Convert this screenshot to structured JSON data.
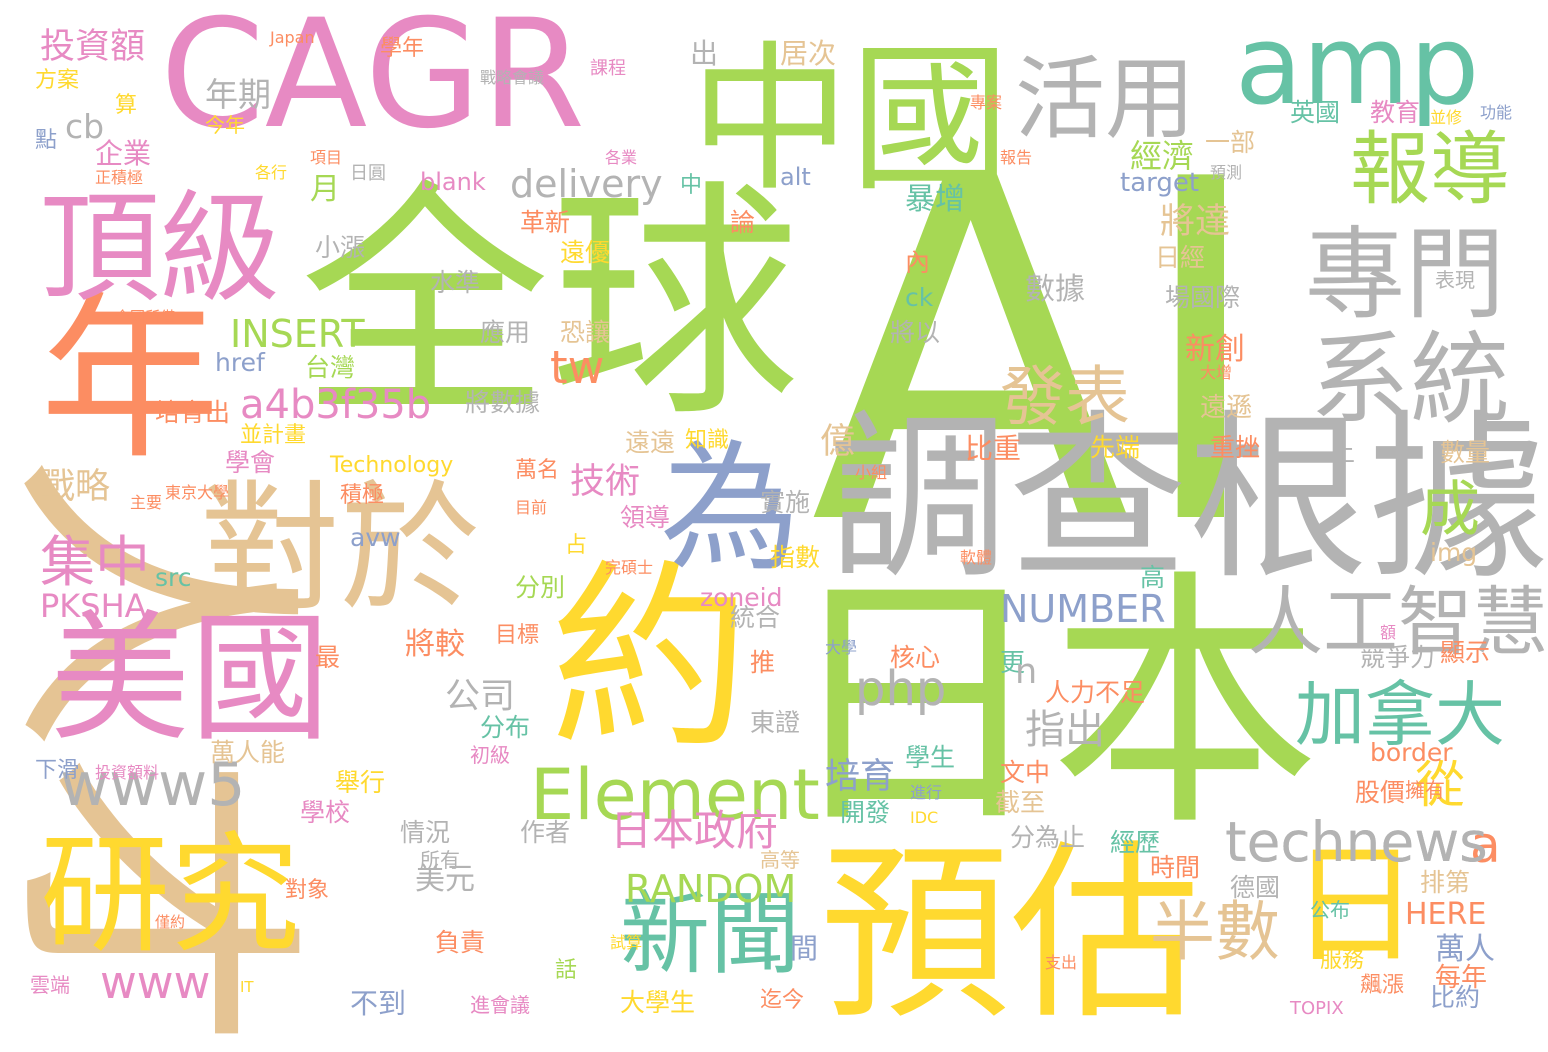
{
  "palette": {
    "green": "#a6d854",
    "pink": "#e78ac3",
    "orange": "#fc8d62",
    "tan": "#e5c494",
    "yellow": "#ffd92f",
    "gray": "#b3b3b3",
    "teal": "#66c2a5",
    "blue": "#8da0cb"
  },
  "words": [
    {
      "text": "AI",
      "color": "green"
    },
    {
      "text": "全球",
      "color": "green"
    },
    {
      "text": "日本",
      "color": "green"
    },
    {
      "text": "人才",
      "color": "tan"
    },
    {
      "text": "調查根據",
      "color": "gray"
    },
    {
      "text": "CAGR",
      "color": "pink"
    },
    {
      "text": "約",
      "color": "yellow"
    },
    {
      "text": "預估",
      "color": "yellow"
    },
    {
      "text": "年",
      "color": "orange"
    },
    {
      "text": "中國",
      "color": "green"
    },
    {
      "text": "對於",
      "color": "tan"
    },
    {
      "text": "研究",
      "color": "yellow"
    },
    {
      "text": "美國",
      "color": "pink"
    },
    {
      "text": "頂級",
      "color": "pink"
    },
    {
      "text": "amp",
      "color": "teal"
    },
    {
      "text": "為",
      "color": "blue"
    },
    {
      "text": "活用",
      "color": "gray"
    },
    {
      "text": "專門",
      "color": "gray"
    },
    {
      "text": "系統",
      "color": "gray"
    },
    {
      "text": "報導",
      "color": "green"
    },
    {
      "text": "日",
      "color": "yellow"
    },
    {
      "text": "人工智慧",
      "color": "gray"
    },
    {
      "text": "新聞",
      "color": "teal"
    },
    {
      "text": "加拿大",
      "color": "teal"
    },
    {
      "text": "Element",
      "color": "green"
    },
    {
      "text": "www5",
      "color": "gray"
    },
    {
      "text": "technews",
      "color": "gray"
    },
    {
      "text": "發表",
      "color": "tan"
    },
    {
      "text": "半數",
      "color": "tan"
    },
    {
      "text": "集中",
      "color": "pink"
    },
    {
      "text": "成",
      "color": "green"
    },
    {
      "text": "從",
      "color": "yellow"
    },
    {
      "text": "a",
      "color": "orange"
    },
    {
      "text": "a4b3f35b",
      "color": "pink"
    },
    {
      "text": "INSERT",
      "color": "green"
    },
    {
      "text": "delivery",
      "color": "gray"
    },
    {
      "text": "tw",
      "color": "orange"
    },
    {
      "text": "日本政府",
      "color": "pink"
    },
    {
      "text": "RANDOM",
      "color": "green"
    },
    {
      "text": "NUMBER",
      "color": "blue"
    },
    {
      "text": "www",
      "color": "pink"
    },
    {
      "text": "PKSHA",
      "color": "pink"
    },
    {
      "text": "php",
      "color": "gray"
    },
    {
      "text": "technews",
      "color": "gray"
    },
    {
      "text": "投資額",
      "color": "pink"
    },
    {
      "text": "年期",
      "color": "gray"
    },
    {
      "text": "cb",
      "color": "gray"
    },
    {
      "text": "企業",
      "color": "pink"
    },
    {
      "text": "算",
      "color": "yellow"
    },
    {
      "text": "方案",
      "color": "yellow"
    },
    {
      "text": "點",
      "color": "blue"
    },
    {
      "text": "今年",
      "color": "yellow"
    },
    {
      "text": "正積極",
      "color": "orange"
    },
    {
      "text": "月",
      "color": "green"
    },
    {
      "text": "blank",
      "color": "pink"
    },
    {
      "text": "各行",
      "color": "yellow"
    },
    {
      "text": "日圓",
      "color": "gray"
    },
    {
      "text": "項目",
      "color": "orange"
    },
    {
      "text": "Japan",
      "color": "orange"
    },
    {
      "text": "學年",
      "color": "orange"
    },
    {
      "text": "戰略會議",
      "color": "gray"
    },
    {
      "text": "課程",
      "color": "pink"
    },
    {
      "text": "出",
      "color": "gray"
    },
    {
      "text": "居次",
      "color": "tan"
    },
    {
      "text": "各業",
      "color": "pink"
    },
    {
      "text": "中",
      "color": "teal"
    },
    {
      "text": "alt",
      "color": "blue"
    },
    {
      "text": "經濟",
      "color": "green"
    },
    {
      "text": "一部",
      "color": "tan"
    },
    {
      "text": "英國",
      "color": "teal"
    },
    {
      "text": "教育",
      "color": "pink"
    },
    {
      "text": "並修",
      "color": "yellow"
    },
    {
      "text": "功能",
      "color": "blue"
    },
    {
      "text": "專案",
      "color": "orange"
    },
    {
      "text": "target",
      "color": "blue"
    },
    {
      "text": "報告",
      "color": "orange"
    },
    {
      "text": "預測",
      "color": "gray"
    },
    {
      "text": "暴增",
      "color": "teal"
    },
    {
      "text": "將達",
      "color": "tan"
    },
    {
      "text": "論",
      "color": "orange"
    },
    {
      "text": "革新",
      "color": "orange"
    },
    {
      "text": "小漲",
      "color": "gray"
    },
    {
      "text": "遠優",
      "color": "yellow"
    },
    {
      "text": "水準",
      "color": "gray"
    },
    {
      "text": "數據",
      "color": "gray"
    },
    {
      "text": "日經",
      "color": "tan"
    },
    {
      "text": "場國際",
      "color": "gray"
    },
    {
      "text": "表現",
      "color": "gray"
    },
    {
      "text": "內",
      "color": "orange"
    },
    {
      "text": "ck",
      "color": "teal"
    },
    {
      "text": "全國所僅",
      "color": "orange"
    },
    {
      "text": "將以",
      "color": "gray"
    },
    {
      "text": "新創",
      "color": "orange"
    },
    {
      "text": "應用",
      "color": "gray"
    },
    {
      "text": "恐讓",
      "color": "tan"
    },
    {
      "text": "href",
      "color": "blue"
    },
    {
      "text": "台灣",
      "color": "green"
    },
    {
      "text": "大增",
      "color": "orange"
    },
    {
      "text": "冠",
      "color": "green"
    },
    {
      "text": "遠遜",
      "color": "tan"
    },
    {
      "text": "培育出",
      "color": "orange"
    },
    {
      "text": "將數據",
      "color": "gray"
    },
    {
      "text": "並計畫",
      "color": "yellow"
    },
    {
      "text": "遠遠",
      "color": "tan"
    },
    {
      "text": "知識",
      "color": "yellow"
    },
    {
      "text": "億",
      "color": "tan"
    },
    {
      "text": "比重",
      "color": "orange"
    },
    {
      "text": "小組",
      "color": "orange"
    },
    {
      "text": "先端",
      "color": "yellow"
    },
    {
      "text": "重挫",
      "color": "orange"
    },
    {
      "text": "數量",
      "color": "tan"
    },
    {
      "text": "學會",
      "color": "pink"
    },
    {
      "text": "東京大學",
      "color": "orange"
    },
    {
      "text": "Technology",
      "color": "yellow"
    },
    {
      "text": "上",
      "color": "gray"
    },
    {
      "text": "戰略",
      "color": "tan"
    },
    {
      "text": "積極",
      "color": "orange"
    },
    {
      "text": "技術",
      "color": "pink"
    },
    {
      "text": "主要",
      "color": "orange"
    },
    {
      "text": "萬名",
      "color": "orange"
    },
    {
      "text": "目前",
      "color": "orange"
    },
    {
      "text": "實施",
      "color": "gray"
    },
    {
      "text": "領導",
      "color": "pink"
    },
    {
      "text": "avw",
      "color": "blue"
    },
    {
      "text": "占",
      "color": "yellow"
    },
    {
      "text": "完碩士",
      "color": "orange"
    },
    {
      "text": "指數",
      "color": "yellow"
    },
    {
      "text": "軟體",
      "color": "orange"
    },
    {
      "text": "img",
      "color": "tan"
    },
    {
      "text": "src",
      "color": "teal"
    },
    {
      "text": "分別",
      "color": "green"
    },
    {
      "text": "高",
      "color": "teal"
    },
    {
      "text": "zoneid",
      "color": "pink"
    },
    {
      "text": "統合",
      "color": "gray"
    },
    {
      "text": "目標",
      "color": "orange"
    },
    {
      "text": "將較",
      "color": "orange"
    },
    {
      "text": "最",
      "color": "orange"
    },
    {
      "text": "推",
      "color": "orange"
    },
    {
      "text": "大學",
      "color": "blue"
    },
    {
      "text": "核心",
      "color": "orange"
    },
    {
      "text": "更",
      "color": "teal"
    },
    {
      "text": "競爭力",
      "color": "gray"
    },
    {
      "text": "顯示",
      "color": "orange"
    },
    {
      "text": "額",
      "color": "pink"
    },
    {
      "text": "n",
      "color": "gray"
    },
    {
      "text": "公司",
      "color": "gray"
    },
    {
      "text": "人力不足",
      "color": "orange"
    },
    {
      "text": "分布",
      "color": "teal"
    },
    {
      "text": "指出",
      "color": "gray"
    },
    {
      "text": "東證",
      "color": "gray"
    },
    {
      "text": "下滑",
      "color": "blue"
    },
    {
      "text": "萬人能",
      "color": "tan"
    },
    {
      "text": "投資額料",
      "color": "pink"
    },
    {
      "text": "初級",
      "color": "pink"
    },
    {
      "text": "學生",
      "color": "teal"
    },
    {
      "text": "border",
      "color": "orange"
    },
    {
      "text": "股價",
      "color": "orange"
    },
    {
      "text": "擁有",
      "color": "orange"
    },
    {
      "text": "舉行",
      "color": "yellow"
    },
    {
      "text": "培育",
      "color": "blue"
    },
    {
      "text": "進行",
      "color": "blue"
    },
    {
      "text": "文中",
      "color": "orange"
    },
    {
      "text": "開發",
      "color": "teal"
    },
    {
      "text": "IDC",
      "color": "yellow"
    },
    {
      "text": "截至",
      "color": "tan"
    },
    {
      "text": "學校",
      "color": "pink"
    },
    {
      "text": "情況",
      "color": "gray"
    },
    {
      "text": "作者",
      "color": "gray"
    },
    {
      "text": "分為止",
      "color": "gray"
    },
    {
      "text": "經歷",
      "color": "teal"
    },
    {
      "text": "所有",
      "color": "gray"
    },
    {
      "text": "高等",
      "color": "tan"
    },
    {
      "text": "時間",
      "color": "orange"
    },
    {
      "text": "德國",
      "color": "gray"
    },
    {
      "text": "排第",
      "color": "tan"
    },
    {
      "text": "美元",
      "color": "gray"
    },
    {
      "text": "對象",
      "color": "orange"
    },
    {
      "text": "HERE",
      "color": "orange"
    },
    {
      "text": "負責",
      "color": "orange"
    },
    {
      "text": "僅約",
      "color": "orange"
    },
    {
      "text": "公布",
      "color": "teal"
    },
    {
      "text": "試算",
      "color": "yellow"
    },
    {
      "text": "間",
      "color": "blue"
    },
    {
      "text": "萬人",
      "color": "blue"
    },
    {
      "text": "服務",
      "color": "yellow"
    },
    {
      "text": "話",
      "color": "green"
    },
    {
      "text": "每年",
      "color": "orange"
    },
    {
      "text": "支出",
      "color": "orange"
    },
    {
      "text": "雲端",
      "color": "pink"
    },
    {
      "text": "IT",
      "color": "yellow"
    },
    {
      "text": "不到",
      "color": "blue"
    },
    {
      "text": "進會議",
      "color": "pink"
    },
    {
      "text": "大學生",
      "color": "yellow"
    },
    {
      "text": "迄今",
      "color": "orange"
    },
    {
      "text": "飆漲",
      "color": "orange"
    },
    {
      "text": "比約",
      "color": "blue"
    },
    {
      "text": "TOPIX",
      "color": "pink"
    }
  ]
}
